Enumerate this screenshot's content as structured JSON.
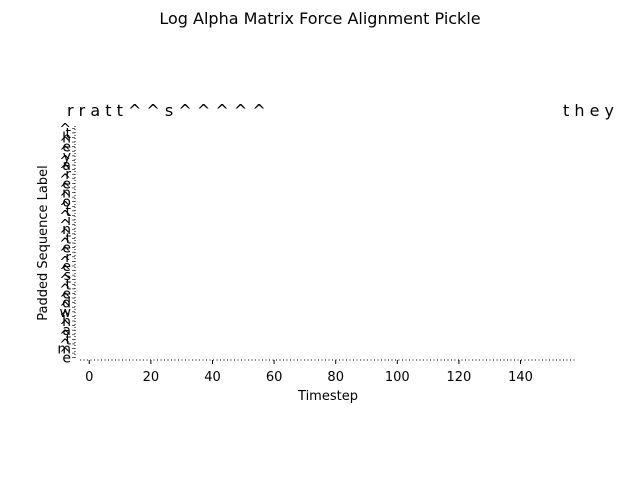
{
  "chart_data": {
    "type": "heatmap",
    "title": "Log Alpha Matrix Force Alignment Pickle",
    "xlabel": "Timestep",
    "ylabel": "Padded Sequence Label",
    "xlim": [
      -3,
      158
    ],
    "x_ticks": [
      0,
      20,
      40,
      60,
      80,
      100,
      120,
      140
    ],
    "grid": false,
    "top_alignment_text_left": "r r a t t ^ ^ s ^ ^ ^ ^ ^",
    "top_alignment_text_right": "t h e y",
    "y_tick_labels": [
      "^",
      "t",
      "h",
      "^",
      "e",
      "^",
      "y",
      "^",
      "a",
      "^",
      "r",
      "^",
      "e",
      "^",
      "n",
      "^",
      "o",
      "^",
      "t",
      "^",
      "i",
      "^",
      "n",
      "^",
      "t",
      "^",
      "e",
      "^",
      "r",
      "^",
      "e",
      "^",
      "s",
      "^",
      "t",
      "^",
      "e",
      "^",
      "d",
      "^",
      "w",
      "^",
      "h",
      "^",
      "a",
      "^",
      "t",
      "^",
      "m",
      "^",
      "e"
    ]
  }
}
